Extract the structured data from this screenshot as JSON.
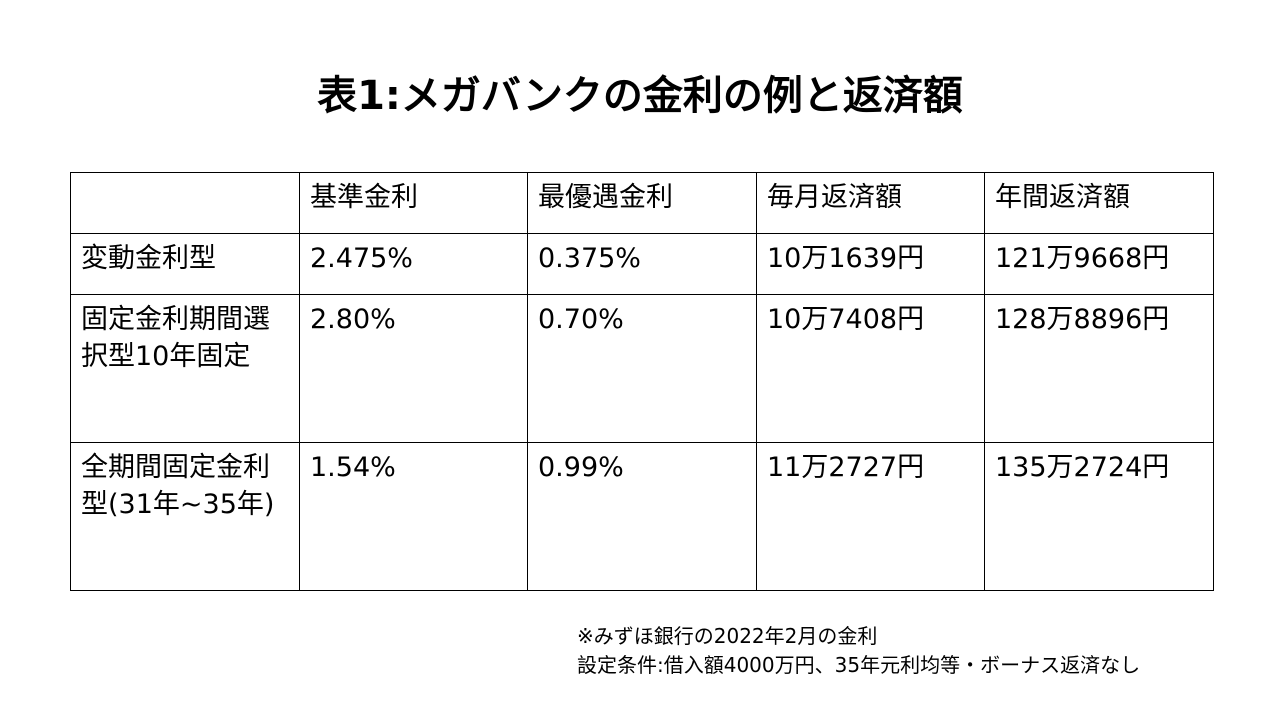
{
  "title": "表1:メガバンクの金利の例と返済額",
  "table": {
    "headers": [
      "",
      "基準金利",
      "最優遇金利",
      "毎月返済額",
      "年間返済額"
    ],
    "rows": [
      {
        "type": "変動金利型",
        "base_rate": "2.475%",
        "best_rate": "0.375%",
        "monthly": "10万1639円",
        "annual": "121万9668円"
      },
      {
        "type": "固定金利期間選択型10年固定",
        "base_rate": "2.80%",
        "best_rate": "0.70%",
        "monthly": "10万7408円",
        "annual": "128万8896円"
      },
      {
        "type": "全期間固定金利型(31年~35年)",
        "base_rate": "1.54%",
        "best_rate": "0.99%",
        "monthly": "11万2727円",
        "annual": "135万2724円"
      }
    ]
  },
  "notes": {
    "source": "※みずほ銀行の2022年2月の金利",
    "conditions": "設定条件:借入額4000万円、35年元利均等・ボーナス返済なし"
  }
}
